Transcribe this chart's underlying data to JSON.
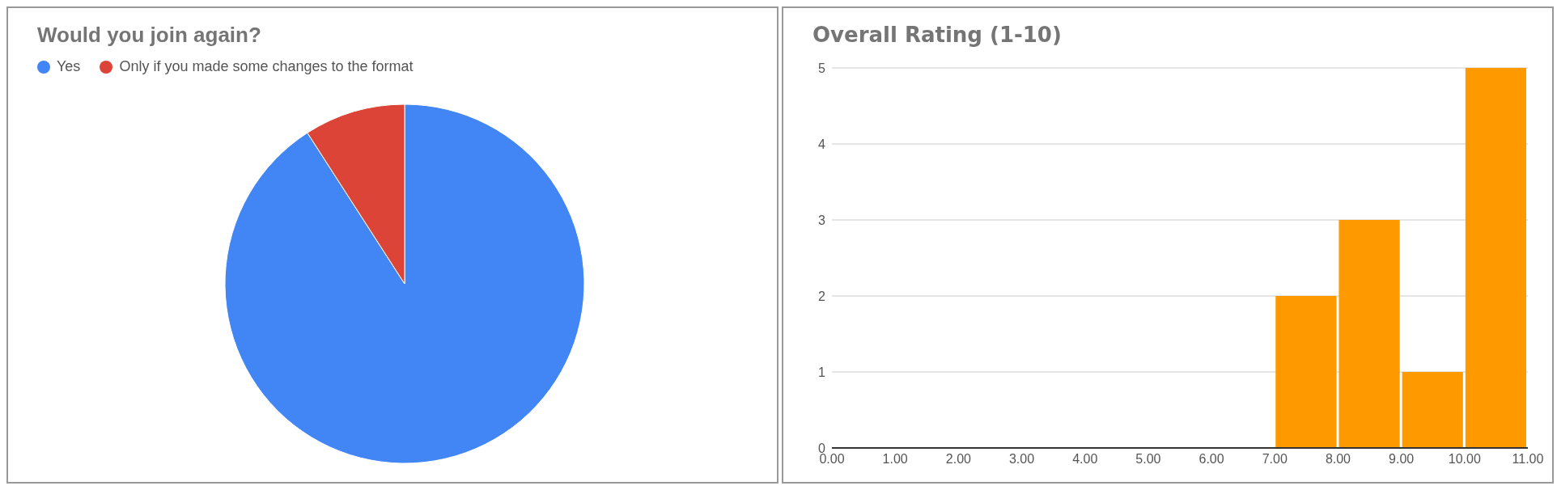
{
  "chart_data": [
    {
      "type": "pie",
      "title": "Would you join again?",
      "categories": [
        "Yes",
        "Only if you made some changes to the format"
      ],
      "values": [
        90.9,
        9.1
      ],
      "colors": [
        "#4285f4",
        "#db4437"
      ],
      "legend": "top left"
    },
    {
      "type": "histogram",
      "title": "Overall Rating (1-10)",
      "bins": [
        0,
        1,
        2,
        3,
        4,
        5,
        6,
        7,
        8,
        9,
        10,
        11
      ],
      "values": [
        0,
        0,
        0,
        0,
        0,
        0,
        0,
        2,
        3,
        1,
        5
      ],
      "color": "#ff9900",
      "xlim": [
        0,
        11
      ],
      "xticks": [
        {
          "value": 0,
          "label": "0.00"
        },
        {
          "value": 1,
          "label": "1.00"
        },
        {
          "value": 2,
          "label": "2.00"
        },
        {
          "value": 3,
          "label": "3.00"
        },
        {
          "value": 4,
          "label": "4.00"
        },
        {
          "value": 5,
          "label": "5.00"
        },
        {
          "value": 6,
          "label": "6.00"
        },
        {
          "value": 7,
          "label": "7.00"
        },
        {
          "value": 8,
          "label": "8.00"
        },
        {
          "value": 9,
          "label": "9.00"
        },
        {
          "value": 10,
          "label": "10.00"
        },
        {
          "value": 11,
          "label": "11.00"
        }
      ],
      "ylim": [
        0,
        5
      ],
      "yticks": [
        0,
        1,
        2,
        3,
        4,
        5
      ],
      "grid": "y"
    }
  ]
}
